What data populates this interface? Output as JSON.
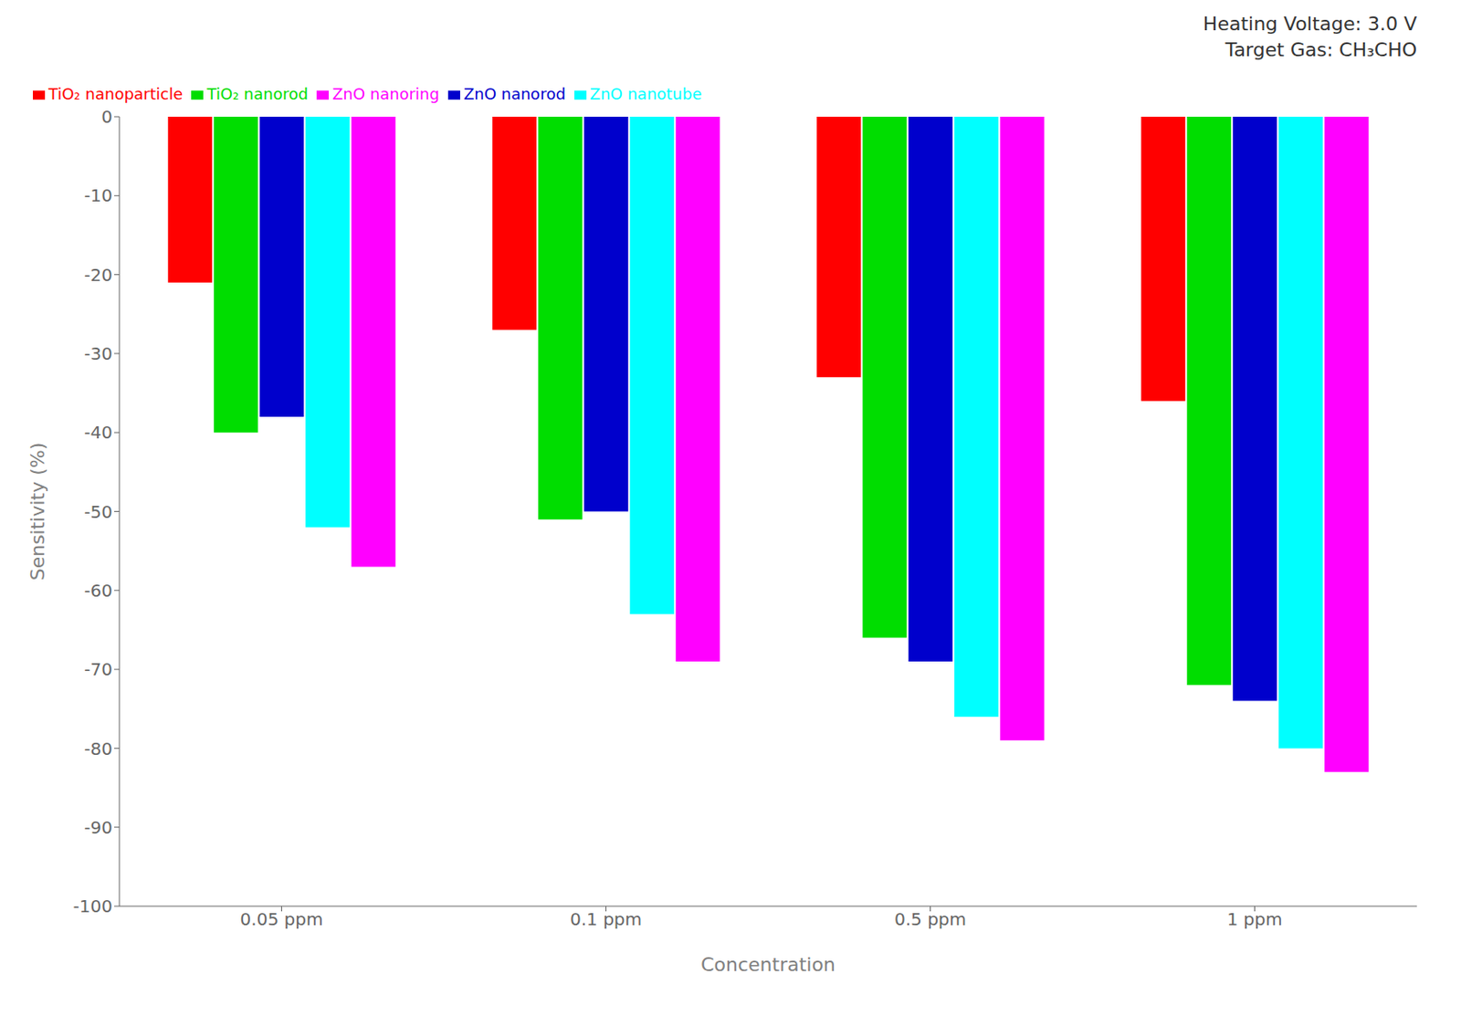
{
  "chart_data": {
    "type": "bar",
    "categories": [
      "0.05 ppm",
      "0.1 ppm",
      "0.5 ppm",
      "1 ppm"
    ],
    "series": [
      {
        "name": "TiO₂ nanoparticle",
        "color": "#ff0000",
        "values": [
          -21,
          -27,
          -33,
          -36
        ]
      },
      {
        "name": "TiO₂ nanorod",
        "color": "#00dd00",
        "values": [
          -40,
          -51,
          -66,
          -72
        ]
      },
      {
        "name": "ZnO nanorod",
        "color": "#0000cc",
        "values": [
          -38,
          -50,
          -69,
          -74
        ]
      },
      {
        "name": "ZnO nanotube",
        "color": "#00ffff",
        "values": [
          -52,
          -63,
          -76,
          -80
        ]
      },
      {
        "name": "ZnO nanoring",
        "color": "#ff00ff",
        "values": [
          -57,
          -69,
          -79,
          -83
        ]
      }
    ],
    "xlabel": "Concentration",
    "ylabel": "Sensitivity (%)",
    "ylim": [
      -100,
      0
    ],
    "yticks": [
      0,
      -10,
      -20,
      -30,
      -40,
      -50,
      -60,
      -70,
      -80,
      -90,
      -100
    ],
    "annotations": [
      "Heating Voltage: 3.0 V",
      "Target Gas: CH₃CHO"
    ],
    "legend": "upper left",
    "grid": false
  }
}
